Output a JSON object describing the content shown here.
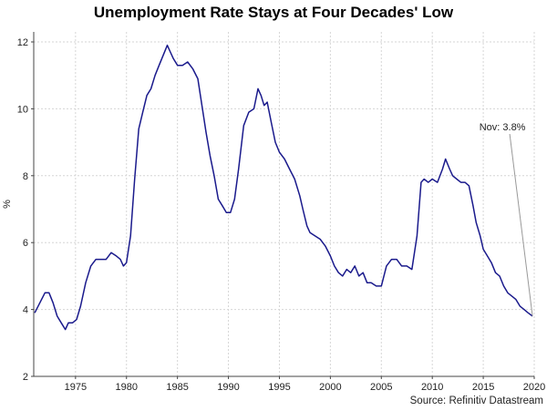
{
  "chart_data": {
    "type": "line",
    "title": "Unemployment Rate Stays at Four Decades' Low",
    "ylabel": "%",
    "xlabel": "",
    "xlim": [
      1970.9,
      2020.0
    ],
    "ylim": [
      2,
      12.3
    ],
    "x_ticks": [
      1975,
      1980,
      1985,
      1990,
      1995,
      2000,
      2005,
      2010,
      2015,
      2020
    ],
    "y_ticks": [
      2,
      4,
      6,
      8,
      10,
      12
    ],
    "grid": true,
    "line_color": "#1a1a8c",
    "annotation": {
      "text": "Nov: 3.8%",
      "x": 2019.83,
      "y": 3.8
    },
    "source": "Source: Refinitiv Datastream",
    "series": [
      {
        "x": [
          1971.0,
          1971.5,
          1972.0,
          1972.4,
          1972.8,
          1973.2,
          1973.6,
          1974.0,
          1974.3,
          1974.7,
          1975.1,
          1975.5,
          1976.0,
          1976.5,
          1977.0,
          1977.5,
          1978.0,
          1978.5,
          1979.0,
          1979.4,
          1979.7,
          1980.0,
          1980.4,
          1980.8,
          1981.2,
          1981.6,
          1982.0,
          1982.4,
          1982.8,
          1983.2,
          1983.6,
          1984.0,
          1984.3,
          1984.6,
          1985.0,
          1985.5,
          1986.0,
          1986.5,
          1987.0,
          1987.4,
          1987.8,
          1988.2,
          1988.6,
          1989.0,
          1989.4,
          1989.8,
          1990.2,
          1990.6,
          1991.0,
          1991.5,
          1992.0,
          1992.5,
          1992.9,
          1993.2,
          1993.5,
          1993.8,
          1994.2,
          1994.6,
          1995.0,
          1995.5,
          1996.0,
          1996.5,
          1997.0,
          1997.3,
          1997.7,
          1998.0,
          1998.5,
          1999.0,
          1999.5,
          2000.0,
          2000.4,
          2000.8,
          2001.2,
          2001.6,
          2002.0,
          2002.4,
          2002.8,
          2003.2,
          2003.6,
          2004.0,
          2004.5,
          2005.0,
          2005.5,
          2006.0,
          2006.5,
          2007.0,
          2007.5,
          2008.0,
          2008.5,
          2008.9,
          2009.2,
          2009.6,
          2010.0,
          2010.5,
          2011.0,
          2011.3,
          2011.7,
          2012.0,
          2012.4,
          2012.8,
          2013.2,
          2013.6,
          2014.0,
          2014.3,
          2014.7,
          2015.0,
          2015.4,
          2015.8,
          2016.2,
          2016.6,
          2017.0,
          2017.4,
          2017.8,
          2018.2,
          2018.6,
          2019.0,
          2019.4,
          2019.83
        ],
        "y": [
          3.9,
          4.2,
          4.5,
          4.5,
          4.2,
          3.8,
          3.6,
          3.4,
          3.6,
          3.6,
          3.7,
          4.1,
          4.8,
          5.3,
          5.5,
          5.5,
          5.5,
          5.7,
          5.6,
          5.5,
          5.3,
          5.4,
          6.2,
          7.9,
          9.4,
          9.9,
          10.4,
          10.6,
          11.0,
          11.3,
          11.6,
          11.9,
          11.7,
          11.5,
          11.3,
          11.3,
          11.4,
          11.2,
          10.9,
          10.1,
          9.3,
          8.6,
          8.0,
          7.3,
          7.1,
          6.9,
          6.9,
          7.3,
          8.2,
          9.5,
          9.9,
          10.0,
          10.6,
          10.4,
          10.1,
          10.2,
          9.6,
          9.0,
          8.7,
          8.5,
          8.2,
          7.9,
          7.4,
          7.0,
          6.5,
          6.3,
          6.2,
          6.1,
          5.9,
          5.6,
          5.3,
          5.1,
          5.0,
          5.2,
          5.1,
          5.3,
          5.0,
          5.1,
          4.8,
          4.8,
          4.7,
          4.7,
          5.3,
          5.5,
          5.5,
          5.3,
          5.3,
          5.2,
          6.2,
          7.8,
          7.9,
          7.8,
          7.9,
          7.8,
          8.2,
          8.5,
          8.2,
          8.0,
          7.9,
          7.8,
          7.8,
          7.7,
          7.1,
          6.6,
          6.2,
          5.8,
          5.6,
          5.4,
          5.1,
          5.0,
          4.7,
          4.5,
          4.4,
          4.3,
          4.1,
          4.0,
          3.9,
          3.8
        ]
      }
    ]
  }
}
